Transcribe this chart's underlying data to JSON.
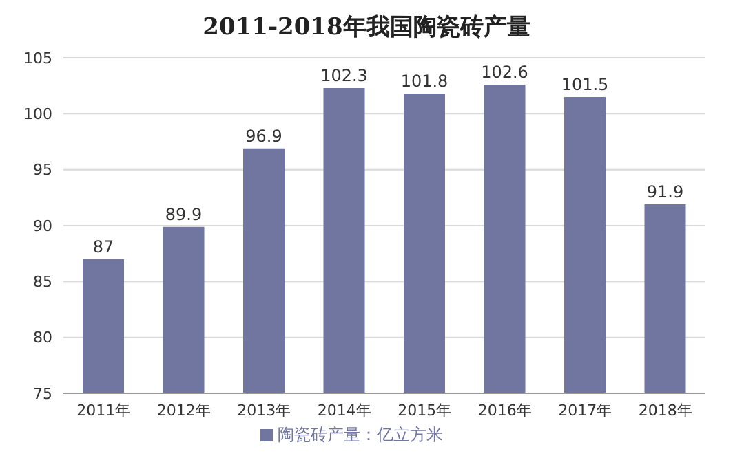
{
  "chart_data": {
    "type": "bar",
    "title": "2011-2018年我国陶瓷砖产量",
    "categories": [
      "2011年",
      "2012年",
      "2013年",
      "2014年",
      "2015年",
      "2016年",
      "2017年",
      "2018年"
    ],
    "series": [
      {
        "name": "陶瓷砖产量：亿立方米",
        "color": "#7076a0",
        "values": [
          87,
          89.9,
          96.9,
          102.3,
          101.8,
          102.6,
          101.5,
          91.9
        ]
      }
    ],
    "ylim": [
      75,
      105
    ],
    "yticks": [
      75,
      80,
      85,
      90,
      95,
      100,
      105
    ],
    "grid": "y",
    "legend": "bottom",
    "data_labels": true
  }
}
